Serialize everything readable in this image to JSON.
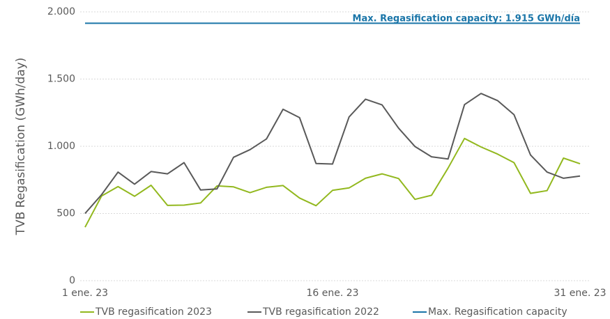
{
  "chart_data": {
    "type": "line",
    "y_label": "TVB Regasification (GWh/day)",
    "annotation": "Max. Regasification capacity: 1.915 GWh/día",
    "categories": [
      "1 ene. 23",
      null,
      null,
      null,
      null,
      null,
      null,
      null,
      null,
      null,
      null,
      null,
      null,
      null,
      null,
      "16 ene. 23",
      null,
      null,
      null,
      null,
      null,
      null,
      null,
      null,
      null,
      null,
      null,
      null,
      null,
      null,
      "31 ene. 23"
    ],
    "series": [
      {
        "name": "TVB regasification 2023",
        "color": "#92b81e",
        "values": [
          398,
          630,
          700,
          628,
          710,
          560,
          562,
          578,
          705,
          698,
          655,
          695,
          708,
          615,
          558,
          672,
          690,
          762,
          795,
          760,
          605,
          635,
          838,
          1058,
          995,
          942,
          878,
          650,
          670,
          912,
          870
        ]
      },
      {
        "name": "TVB regasification 2022",
        "color": "#595959",
        "values": [
          500,
          640,
          808,
          718,
          812,
          795,
          878,
          675,
          683,
          918,
          975,
          1055,
          1275,
          1213,
          872,
          868,
          1218,
          1350,
          1308,
          1135,
          998,
          922,
          905,
          1310,
          1393,
          1340,
          1235,
          935,
          808,
          762,
          778
        ]
      },
      {
        "name": "Max. Regasification capacity",
        "color": "#1a75a8",
        "values": [
          1915,
          1915,
          1915,
          1915,
          1915,
          1915,
          1915,
          1915,
          1915,
          1915,
          1915,
          1915,
          1915,
          1915,
          1915,
          1915,
          1915,
          1915,
          1915,
          1915,
          1915,
          1915,
          1915,
          1915,
          1915,
          1915,
          1915,
          1915,
          1915,
          1915,
          1915
        ]
      }
    ],
    "ylim": [
      0,
      2000
    ],
    "yticks": [
      0,
      500,
      {
        "value": 1000,
        "label": "1.000"
      },
      {
        "value": 1500,
        "label": "1.500"
      },
      {
        "value": 2000,
        "label": "2.000"
      }
    ],
    "grid": true,
    "legend": "bottom"
  }
}
